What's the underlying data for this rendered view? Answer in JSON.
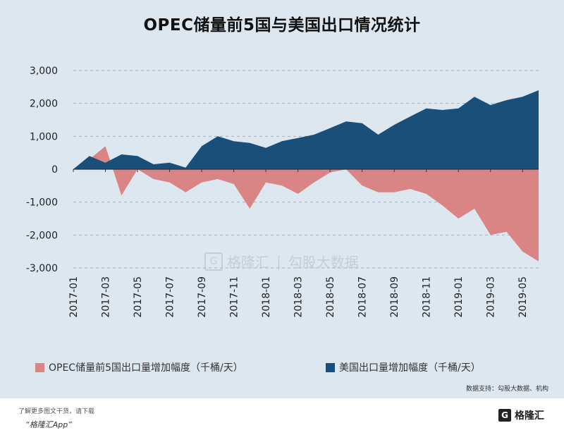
{
  "chart_data": {
    "type": "area",
    "title": "OPEC储量前5国与美国出口情况统计",
    "x": [
      "2017-01",
      "2017-02",
      "2017-03",
      "2017-04",
      "2017-05",
      "2017-06",
      "2017-07",
      "2017-08",
      "2017-09",
      "2017-10",
      "2017-11",
      "2017-12",
      "2018-01",
      "2018-02",
      "2018-03",
      "2018-04",
      "2018-05",
      "2018-06",
      "2018-07",
      "2018-08",
      "2018-09",
      "2018-10",
      "2018-11",
      "2018-12",
      "2019-01",
      "2019-02",
      "2019-03",
      "2019-04",
      "2019-05",
      "2019-06"
    ],
    "x_tick_labels": [
      "2017-01",
      "2017-03",
      "2017-05",
      "2017-07",
      "2017-09",
      "2017-11",
      "2018-01",
      "2018-03",
      "2018-05",
      "2018-07",
      "2018-09",
      "2018-11",
      "2019-01",
      "2019-03",
      "2019-05"
    ],
    "y_ticks": [
      "3,000",
      "2,000",
      "1,000",
      "0",
      "-1,000",
      "-2,000",
      "-3,000"
    ],
    "ylim": [
      -3000,
      3000
    ],
    "grid": true,
    "legend_position": "bottom",
    "series": [
      {
        "name": "OPEC储量前5国出口量增加幅度（千桶/天）",
        "color": "#d98585",
        "values": [
          0,
          300,
          700,
          -800,
          0,
          -300,
          -400,
          -700,
          -400,
          -300,
          -450,
          -1200,
          -400,
          -500,
          -750,
          -400,
          -100,
          0,
          -500,
          -700,
          -700,
          -600,
          -750,
          -1100,
          -1500,
          -1200,
          -2000,
          -1900,
          -2500,
          -2800
        ]
      },
      {
        "name": "美国出口量增加幅度（千桶/天）",
        "color": "#1a4f7a",
        "values": [
          0,
          400,
          200,
          450,
          400,
          150,
          200,
          50,
          700,
          1000,
          850,
          800,
          650,
          850,
          950,
          1050,
          1250,
          1450,
          1400,
          1050,
          1350,
          1600,
          1850,
          1800,
          1850,
          2200,
          1950,
          2100,
          2200,
          2400
        ]
      }
    ]
  },
  "source_note": "数据支持：勾股大数据、机构",
  "watermark": {
    "brand": "格隆汇",
    "divider": "|",
    "partner": "勾股大数据"
  },
  "footer": {
    "line1": "了解更多图文干货，请下载",
    "line2": "“格隆汇App”",
    "logo_text": "格隆汇",
    "logo_mark": "G"
  }
}
